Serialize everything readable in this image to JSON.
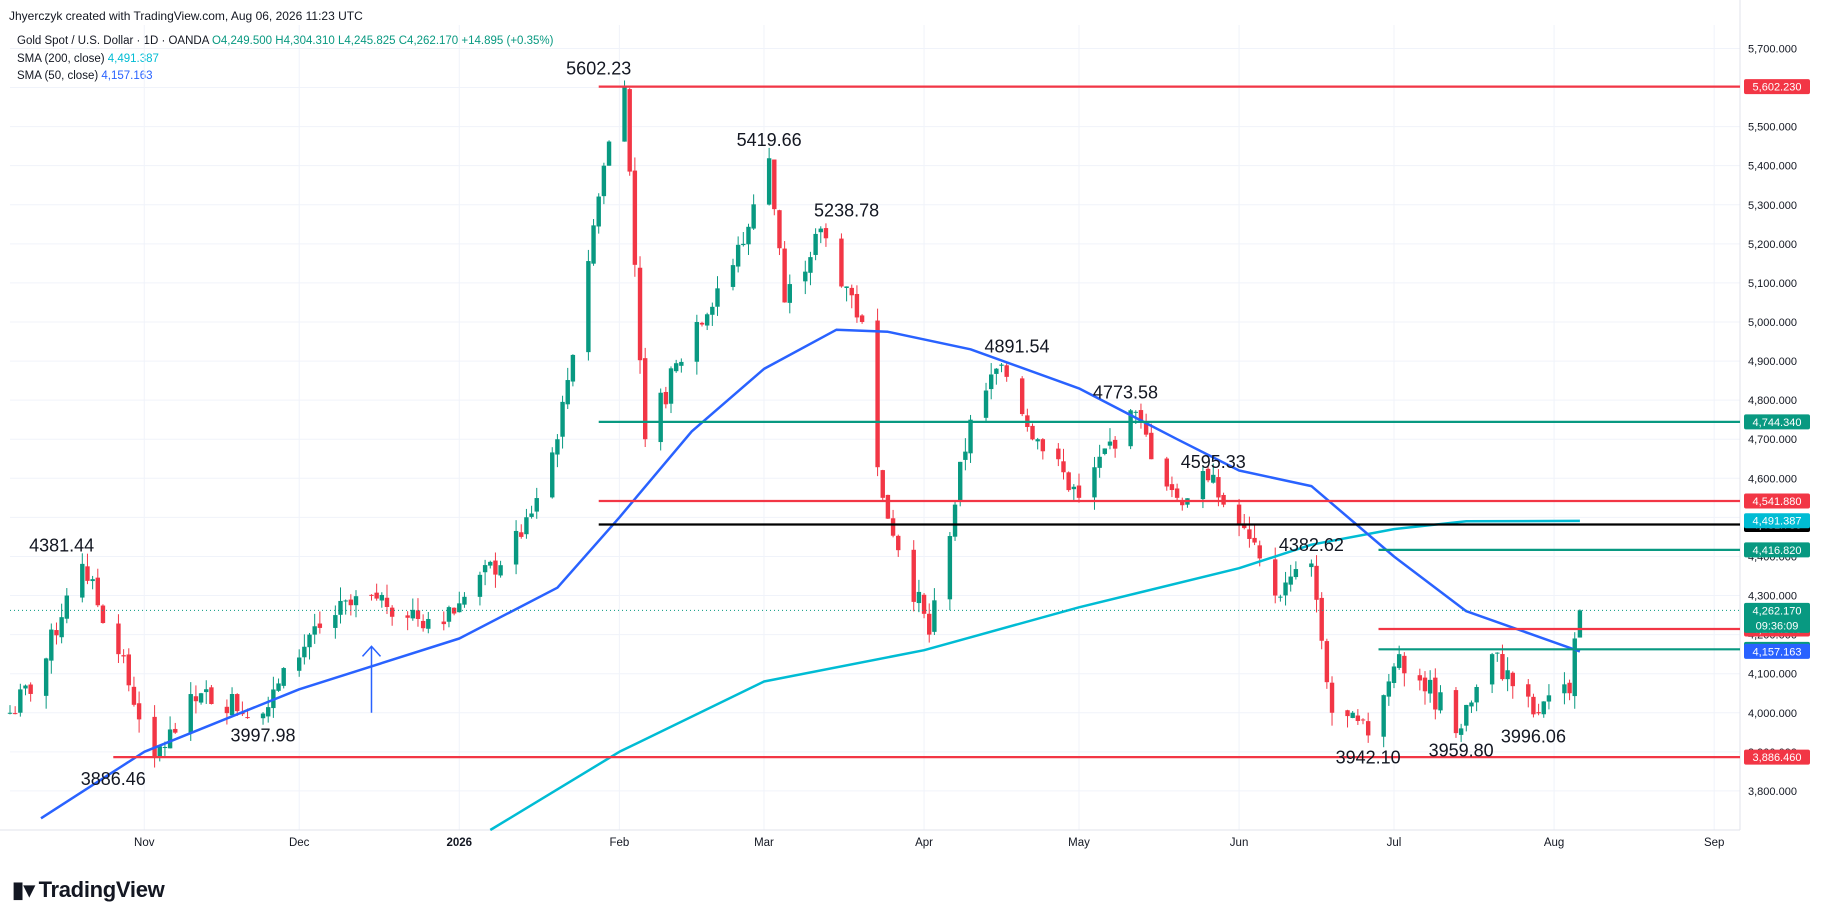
{
  "credit": "Jhyerczyk created with TradingView.com, Aug 06, 2026 11:23 UTC",
  "legend": {
    "symbol": "Gold Spot / U.S. Dollar · 1D · OANDA",
    "ohlc": {
      "o_label": "O",
      "o": "4,249.500",
      "h_label": "H",
      "h": "4,304.310",
      "l_label": "L",
      "l": "4,245.825",
      "c_label": "C",
      "c": "4,262.170",
      "chg": "+14.895 (+0.35%)"
    },
    "sma200_label": "SMA (200, close)",
    "sma200_value": "4,491.387",
    "sma50_label": "SMA (50, close)",
    "sma50_value": "4,157.163"
  },
  "brand": {
    "name": "TradingView",
    "logo_icon": "tradingview-logo-icon"
  },
  "colors": {
    "up": "#089981",
    "down": "#f23645",
    "sma200": "#00bcd4",
    "sma50": "#2962ff",
    "black": "#000000"
  },
  "chart_data": {
    "type": "line",
    "title": "",
    "xlabel": "",
    "ylabel": "",
    "ylim": [
      3700,
      5760
    ],
    "x_ticks": [
      "Nov",
      "Dec",
      "2026",
      "Feb",
      "Mar",
      "Apr",
      "May",
      "Jun",
      "Jul",
      "Aug",
      "Sep"
    ],
    "y_ticks": [
      "5,700.000",
      "5,600.000",
      "5,500.000",
      "5,400.000",
      "5,300.000",
      "5,200.000",
      "5,100.000",
      "5,000.000",
      "4,900.000",
      "4,800.000",
      "4,700.000",
      "4,600.000",
      "4,500.000",
      "4,400.000",
      "4,300.000",
      "4,200.000",
      "4,100.000",
      "4,000.000",
      "3,900.000",
      "3,800.000"
    ],
    "x_start": "2025-10-06",
    "grid": true,
    "series": [
      {
        "name": "Gold Spot / U.S. Dollar",
        "kind": "price",
        "x": [
          "2025-10-06",
          "2025-10-12",
          "2025-10-17",
          "2025-10-20",
          "2025-10-27",
          "2025-11-03",
          "2025-11-12",
          "2025-11-24",
          "2025-12-03",
          "2025-12-08",
          "2025-12-15",
          "2025-12-26",
          "2026-01-01",
          "2026-01-13",
          "2026-01-20",
          "2026-01-29",
          "2026-02-02",
          "2026-02-06",
          "2026-02-16",
          "2026-02-25",
          "2026-03-02",
          "2026-03-05",
          "2026-03-12",
          "2026-03-20",
          "2026-03-24",
          "2026-04-02",
          "2026-04-10",
          "2026-04-16",
          "2026-04-23",
          "2026-05-01",
          "2026-05-11",
          "2026-05-20",
          "2026-05-26",
          "2026-06-01",
          "2026-06-08",
          "2026-06-15",
          "2026-06-19",
          "2026-06-26",
          "2026-07-02",
          "2026-07-14",
          "2026-07-20",
          "2026-07-28",
          "2026-08-04",
          "2026-08-06"
        ],
        "y": [
          4000,
          4100,
          4300,
          4381,
          4150,
          3886,
          4050,
          3998,
          4200,
          4250,
          4300,
          4240,
          4280,
          4450,
          4700,
          5400,
          5602,
          4700,
          5000,
          5200,
          5419,
          5050,
          5239,
          5000,
          4550,
          4200,
          4750,
          4891,
          4700,
          4550,
          4774,
          4550,
          4595,
          4480,
          4300,
          4382,
          4000,
          3942,
          4150,
          3960,
          4150,
          3996,
          4050,
          4262
        ]
      },
      {
        "name": "SMA (200, close)",
        "x": [
          "2026-01-07",
          "2026-02-01",
          "2026-03-01",
          "2026-04-01",
          "2026-05-01",
          "2026-06-01",
          "2026-06-15",
          "2026-07-01",
          "2026-07-15",
          "2026-08-06"
        ],
        "y": [
          3700,
          3900,
          4080,
          4160,
          4270,
          4370,
          4430,
          4470,
          4490,
          4491
        ]
      },
      {
        "name": "SMA (50, close)",
        "x": [
          "2025-10-12",
          "2025-11-01",
          "2025-12-01",
          "2026-01-01",
          "2026-01-20",
          "2026-02-01",
          "2026-02-15",
          "2026-03-01",
          "2026-03-15",
          "2026-03-25",
          "2026-04-10",
          "2026-05-01",
          "2026-05-20",
          "2026-06-01",
          "2026-06-15",
          "2026-07-01",
          "2026-07-15",
          "2026-08-06"
        ],
        "y": [
          3730,
          3900,
          4060,
          4190,
          4320,
          4500,
          4720,
          4880,
          4980,
          4975,
          4930,
          4830,
          4700,
          4620,
          4580,
          4400,
          4260,
          4157
        ]
      }
    ],
    "levels": [
      {
        "value": 5602.23,
        "label": "5,602.230",
        "color": "red",
        "from": "2026-01-28",
        "to": "right"
      },
      {
        "value": 4744.34,
        "label": "4,744.340",
        "color": "green",
        "from": "2026-01-28",
        "to": "right"
      },
      {
        "value": 4541.88,
        "label": "4,541.880",
        "color": "red",
        "from": "2026-01-28",
        "to": "right"
      },
      {
        "value": 4481.78,
        "label": "4,481.780",
        "color": "black",
        "from": "2026-01-28",
        "to": "right"
      },
      {
        "value": 4416.82,
        "label": "4,416.820",
        "color": "green",
        "from": "2026-06-28",
        "to": "right"
      },
      {
        "value": 4214.34,
        "label": "4,214.340",
        "color": "red",
        "from": "2026-06-28",
        "to": "right"
      },
      {
        "value": 4162.36,
        "label": "4,162.360",
        "color": "green",
        "from": "2026-06-28",
        "to": "right"
      },
      {
        "value": 3886.46,
        "label": "3,886.460",
        "color": "red",
        "from": "2025-10-26",
        "to": "right"
      }
    ],
    "price_tags": [
      {
        "value": 4491.387,
        "label": "4,491.387",
        "color": "sma200"
      },
      {
        "value": 4262.17,
        "label": "4,262.170",
        "color": "up",
        "countdown": "09:36:09"
      },
      {
        "value": 4157.163,
        "label": "4,157.163",
        "color": "sma50"
      }
    ],
    "annotations": [
      {
        "text": "5602.23",
        "x": "2026-01-28",
        "y": 5602.23,
        "pos": "above"
      },
      {
        "text": "5419.66",
        "x": "2026-03-02",
        "y": 5419.66,
        "pos": "above"
      },
      {
        "text": "5238.78",
        "x": "2026-03-17",
        "y": 5238.78,
        "pos": "above"
      },
      {
        "text": "4891.54",
        "x": "2026-04-19",
        "y": 4891.54,
        "pos": "above"
      },
      {
        "text": "4773.58",
        "x": "2026-05-10",
        "y": 4773.58,
        "pos": "above"
      },
      {
        "text": "4595.33",
        "x": "2026-05-27",
        "y": 4595.33,
        "pos": "above"
      },
      {
        "text": "4381.44",
        "x": "2025-10-16",
        "y": 4381.44,
        "pos": "above"
      },
      {
        "text": "4382.62",
        "x": "2026-06-15",
        "y": 4382.62,
        "pos": "above"
      },
      {
        "text": "3997.98",
        "x": "2025-11-24",
        "y": 3997.98,
        "pos": "below"
      },
      {
        "text": "3886.46",
        "x": "2025-10-26",
        "y": 3886.46,
        "pos": "below"
      },
      {
        "text": "3942.10",
        "x": "2026-06-26",
        "y": 3942.1,
        "pos": "below"
      },
      {
        "text": "3959.80",
        "x": "2026-07-14",
        "y": 3959.8,
        "pos": "below"
      },
      {
        "text": "3996.06",
        "x": "2026-07-28",
        "y": 3996.06,
        "pos": "below"
      }
    ],
    "arrow": {
      "x": "2025-12-15",
      "from": 4000,
      "to": 4170,
      "color": "sma50"
    }
  }
}
